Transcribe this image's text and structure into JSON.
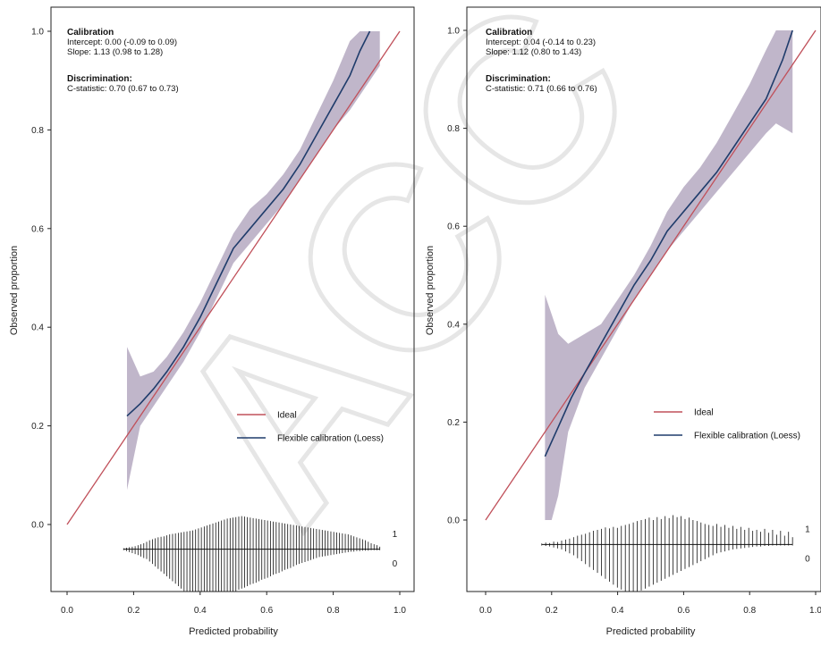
{
  "watermark": "ACC",
  "chart_data": [
    {
      "type": "line",
      "xlabel": "Predicted probability",
      "ylabel": "Observed proportion",
      "xlim": [
        -0.05,
        1.0
      ],
      "ylim": [
        -0.16,
        1.0
      ],
      "x_ticks": [
        "0.0",
        "0.2",
        "0.4",
        "0.6",
        "0.8",
        "1.0"
      ],
      "y_ticks": [
        "0.0",
        "0.2",
        "0.4",
        "0.6",
        "0.8",
        "1.0"
      ],
      "grid": false,
      "legend_position": "center-right",
      "stats": {
        "calibration_heading": "Calibration",
        "intercept": "Intercept: 0.00 (-0.09 to 0.09)",
        "slope": "Slope: 1.13 (0.98 to 1.28)",
        "discrimination_heading": "Discrimination:",
        "cstat": "C-statistic: 0.70 (0.67 to 0.73)"
      },
      "series": [
        {
          "name": "Ideal",
          "color": "#c0505a",
          "x": [
            0.0,
            1.0
          ],
          "y": [
            0.0,
            1.0
          ]
        },
        {
          "name": "Flexible calibration (Loess)",
          "color": "#1f3c6b",
          "x": [
            0.18,
            0.22,
            0.26,
            0.3,
            0.35,
            0.4,
            0.45,
            0.5,
            0.55,
            0.6,
            0.65,
            0.7,
            0.75,
            0.8,
            0.85,
            0.88,
            0.91
          ],
          "y": [
            0.22,
            0.245,
            0.275,
            0.31,
            0.36,
            0.42,
            0.49,
            0.56,
            0.6,
            0.64,
            0.68,
            0.73,
            0.79,
            0.85,
            0.91,
            0.96,
            1.0
          ]
        }
      ],
      "ci_band": {
        "color": "#9e8fae",
        "x": [
          0.18,
          0.22,
          0.26,
          0.3,
          0.35,
          0.4,
          0.45,
          0.5,
          0.55,
          0.6,
          0.65,
          0.7,
          0.75,
          0.8,
          0.85,
          0.88,
          0.91,
          0.94
        ],
        "lower": [
          0.07,
          0.2,
          0.24,
          0.28,
          0.33,
          0.39,
          0.46,
          0.53,
          0.57,
          0.61,
          0.65,
          0.7,
          0.75,
          0.8,
          0.84,
          0.87,
          0.9,
          0.93
        ],
        "upper": [
          0.36,
          0.3,
          0.31,
          0.34,
          0.39,
          0.45,
          0.52,
          0.59,
          0.64,
          0.67,
          0.71,
          0.76,
          0.83,
          0.9,
          0.98,
          1.0,
          1.0,
          1.0
        ]
      },
      "spike_labels": [
        "1",
        "0"
      ],
      "spikes": {
        "x_range": [
          0.17,
          0.94
        ],
        "count": 90,
        "up_heights": [
          0.002,
          0.003,
          0.004,
          0.005,
          0.006,
          0.008,
          0.01,
          0.012,
          0.015,
          0.018,
          0.02,
          0.022,
          0.024,
          0.025,
          0.026,
          0.028,
          0.03,
          0.031,
          0.032,
          0.033,
          0.034,
          0.035,
          0.036,
          0.037,
          0.038,
          0.04,
          0.042,
          0.044,
          0.046,
          0.048,
          0.05,
          0.052,
          0.054,
          0.056,
          0.058,
          0.06,
          0.062,
          0.063,
          0.064,
          0.065,
          0.066,
          0.067,
          0.066,
          0.065,
          0.064,
          0.063,
          0.062,
          0.061,
          0.06,
          0.059,
          0.058,
          0.057,
          0.056,
          0.055,
          0.054,
          0.053,
          0.052,
          0.051,
          0.05,
          0.049,
          0.048,
          0.047,
          0.046,
          0.045,
          0.044,
          0.043,
          0.042,
          0.041,
          0.04,
          0.039,
          0.038,
          0.037,
          0.036,
          0.035,
          0.034,
          0.033,
          0.032,
          0.031,
          0.03,
          0.028,
          0.026,
          0.024,
          0.022,
          0.02,
          0.018,
          0.015,
          0.012,
          0.01,
          0.008,
          0.005
        ],
        "down_heights": [
          0.002,
          0.004,
          0.006,
          0.008,
          0.01,
          0.012,
          0.015,
          0.018,
          0.02,
          0.025,
          0.03,
          0.035,
          0.04,
          0.045,
          0.05,
          0.055,
          0.06,
          0.065,
          0.07,
          0.075,
          0.08,
          0.085,
          0.09,
          0.092,
          0.095,
          0.098,
          0.1,
          0.102,
          0.104,
          0.105,
          0.104,
          0.103,
          0.102,
          0.1,
          0.098,
          0.095,
          0.092,
          0.09,
          0.088,
          0.085,
          0.082,
          0.08,
          0.078,
          0.075,
          0.072,
          0.07,
          0.068,
          0.065,
          0.062,
          0.06,
          0.058,
          0.055,
          0.052,
          0.05,
          0.048,
          0.045,
          0.042,
          0.04,
          0.038,
          0.035,
          0.032,
          0.03,
          0.028,
          0.026,
          0.024,
          0.022,
          0.02,
          0.018,
          0.016,
          0.015,
          0.014,
          0.013,
          0.012,
          0.011,
          0.01,
          0.009,
          0.008,
          0.007,
          0.006,
          0.005,
          0.005,
          0.004,
          0.004,
          0.003,
          0.003,
          0.003,
          0.002,
          0.002,
          0.002,
          0.002
        ]
      }
    },
    {
      "type": "line",
      "xlabel": "Predicted probability",
      "ylabel": "Observed proportion",
      "xlim": [
        -0.05,
        1.0
      ],
      "ylim": [
        -0.16,
        1.0
      ],
      "x_ticks": [
        "0.0",
        "0.2",
        "0.4",
        "0.6",
        "0.8",
        "1.0"
      ],
      "y_ticks": [
        "0.0",
        "0.2",
        "0.4",
        "0.6",
        "0.8",
        "1.0"
      ],
      "grid": false,
      "legend_position": "center-right",
      "stats": {
        "calibration_heading": "Calibration",
        "intercept": "Intercept: 0.04 (-0.14 to 0.23)",
        "slope": "Slope: 1.12 (0.80 to 1.43)",
        "discrimination_heading": "Discrimination:",
        "cstat": "C-statistic: 0.71 (0.66 to 0.76)"
      },
      "series": [
        {
          "name": "Ideal",
          "color": "#c0505a",
          "x": [
            0.0,
            1.0
          ],
          "y": [
            0.0,
            1.0
          ]
        },
        {
          "name": "Flexible calibration (Loess)",
          "color": "#1f3c6b",
          "x": [
            0.18,
            0.22,
            0.26,
            0.3,
            0.35,
            0.4,
            0.45,
            0.5,
            0.55,
            0.6,
            0.65,
            0.7,
            0.75,
            0.8,
            0.85,
            0.9,
            0.93
          ],
          "y": [
            0.13,
            0.19,
            0.25,
            0.3,
            0.36,
            0.42,
            0.48,
            0.53,
            0.59,
            0.63,
            0.67,
            0.71,
            0.76,
            0.81,
            0.86,
            0.94,
            1.0
          ]
        }
      ],
      "ci_band": {
        "color": "#9e8fae",
        "x": [
          0.18,
          0.2,
          0.22,
          0.25,
          0.3,
          0.35,
          0.4,
          0.45,
          0.5,
          0.55,
          0.6,
          0.65,
          0.7,
          0.75,
          0.8,
          0.85,
          0.88,
          0.93
        ],
        "lower": [
          0.0,
          0.0,
          0.05,
          0.18,
          0.27,
          0.33,
          0.39,
          0.45,
          0.5,
          0.55,
          0.59,
          0.63,
          0.67,
          0.71,
          0.75,
          0.79,
          0.81,
          0.79
        ],
        "upper": [
          0.46,
          0.42,
          0.38,
          0.36,
          0.38,
          0.4,
          0.45,
          0.5,
          0.56,
          0.63,
          0.68,
          0.72,
          0.77,
          0.83,
          0.89,
          0.96,
          1.0,
          1.0
        ]
      },
      "spike_labels": [
        "1",
        "0"
      ],
      "spikes": {
        "x_range": [
          0.17,
          0.93
        ],
        "count": 64,
        "up_heights": [
          0.002,
          0.004,
          0.003,
          0.006,
          0.005,
          0.008,
          0.01,
          0.012,
          0.015,
          0.018,
          0.02,
          0.022,
          0.025,
          0.028,
          0.03,
          0.032,
          0.035,
          0.033,
          0.036,
          0.034,
          0.038,
          0.04,
          0.042,
          0.045,
          0.048,
          0.05,
          0.052,
          0.055,
          0.05,
          0.056,
          0.052,
          0.058,
          0.054,
          0.06,
          0.056,
          0.058,
          0.052,
          0.055,
          0.05,
          0.048,
          0.045,
          0.042,
          0.04,
          0.038,
          0.042,
          0.036,
          0.04,
          0.034,
          0.038,
          0.032,
          0.036,
          0.03,
          0.034,
          0.028,
          0.03,
          0.026,
          0.032,
          0.024,
          0.03,
          0.02,
          0.028,
          0.018,
          0.026,
          0.015
        ],
        "down_heights": [
          0.002,
          0.003,
          0.004,
          0.006,
          0.008,
          0.01,
          0.014,
          0.018,
          0.022,
          0.028,
          0.034,
          0.04,
          0.046,
          0.052,
          0.058,
          0.064,
          0.07,
          0.076,
          0.082,
          0.088,
          0.092,
          0.096,
          0.1,
          0.098,
          0.096,
          0.094,
          0.09,
          0.086,
          0.082,
          0.078,
          0.074,
          0.07,
          0.066,
          0.062,
          0.058,
          0.054,
          0.05,
          0.046,
          0.042,
          0.038,
          0.034,
          0.03,
          0.026,
          0.022,
          0.018,
          0.016,
          0.014,
          0.012,
          0.01,
          0.009,
          0.008,
          0.007,
          0.006,
          0.005,
          0.004,
          0.004,
          0.003,
          0.003,
          0.002,
          0.002,
          0.002,
          0.002,
          0.002,
          0.002
        ]
      }
    }
  ]
}
